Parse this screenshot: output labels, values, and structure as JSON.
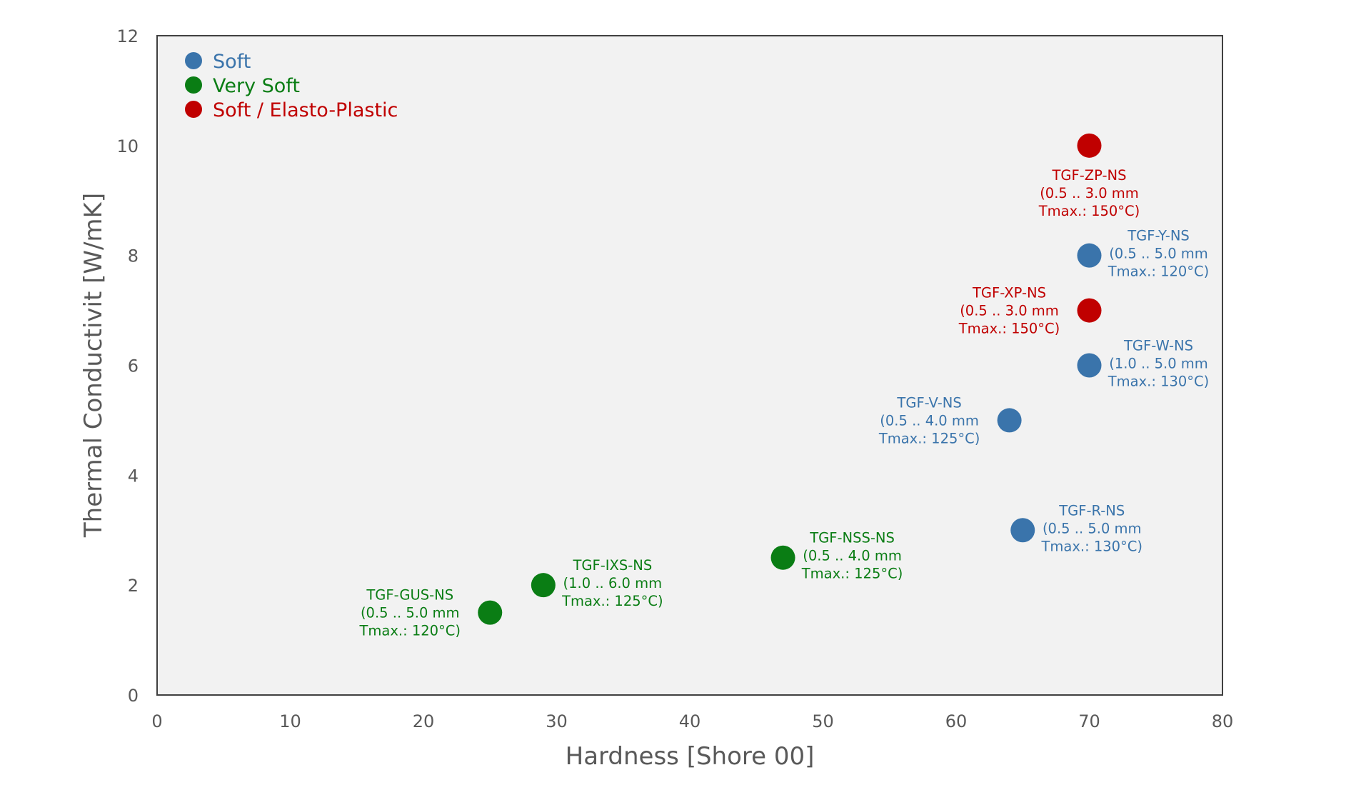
{
  "chart_data": {
    "type": "scatter",
    "title": "",
    "xlabel": "Hardness [Shore 00]",
    "ylabel": "Thermal Conductivit [W/mK]",
    "xlim": [
      0,
      80
    ],
    "ylim": [
      0,
      12
    ],
    "xticks": [
      "0",
      "10",
      "20",
      "30",
      "40",
      "50",
      "60",
      "70",
      "80"
    ],
    "yticks": [
      "0",
      "2",
      "4",
      "6",
      "8",
      "10",
      "12"
    ],
    "grid": false,
    "legend_position": "top-left",
    "series": [
      {
        "name": "Soft",
        "color": "#3a74ab",
        "points": [
          {
            "x": 70,
            "y": 8,
            "label": [
              "TGF-Y-NS",
              "(0.5 .. 5.0 mm",
              "Tmax.: 120°C)"
            ],
            "label_side": "right-above"
          },
          {
            "x": 70,
            "y": 6,
            "label": [
              "TGF-W-NS",
              "(1.0 .. 5.0 mm",
              "Tmax.: 130°C)"
            ],
            "label_side": "right-above"
          },
          {
            "x": 64,
            "y": 5,
            "label": [
              "TGF-V-NS",
              "(0.5 .. 4.0 mm",
              "Tmax.: 125°C)"
            ],
            "label_side": "left"
          },
          {
            "x": 65,
            "y": 3,
            "label": [
              "TGF-R-NS",
              "(0.5 .. 5.0 mm",
              "Tmax.: 130°C)"
            ],
            "label_side": "right-above"
          }
        ]
      },
      {
        "name": "Very Soft",
        "color": "#0a7d14",
        "points": [
          {
            "x": 25,
            "y": 1.5,
            "label": [
              "TGF-GUS-NS",
              "(0.5 .. 5.0 mm",
              "Tmax.: 120°C)"
            ],
            "label_side": "left"
          },
          {
            "x": 29,
            "y": 2,
            "label": [
              "TGF-IXS-NS",
              "(1.0 .. 6.0 mm",
              "Tmax.: 125°C)"
            ],
            "label_side": "right-above"
          },
          {
            "x": 47,
            "y": 2.5,
            "label": [
              "TGF-NSS-NS",
              "(0.5 .. 4.0 mm",
              "Tmax.: 125°C)"
            ],
            "label_side": "right-above"
          }
        ]
      },
      {
        "name": "Soft / Elasto-Plastic",
        "color": "#c00000",
        "points": [
          {
            "x": 70,
            "y": 10,
            "label": [
              "TGF-ZP-NS",
              "(0.5 .. 3.0 mm",
              "Tmax.: 150°C)"
            ],
            "label_side": "below"
          },
          {
            "x": 70,
            "y": 7,
            "label": [
              "TGF-XP-NS",
              "(0.5 .. 3.0 mm",
              "Tmax.: 150°C)"
            ],
            "label_side": "left"
          }
        ]
      }
    ]
  }
}
